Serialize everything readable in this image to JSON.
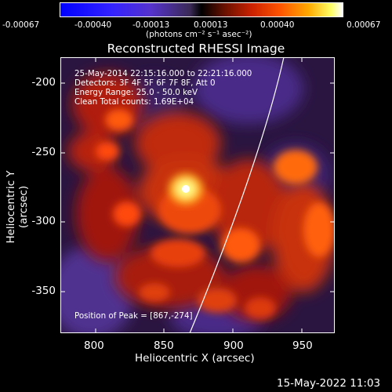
{
  "colorbar": {
    "ticks": [
      "-0.00067",
      "-0.00040",
      "-0.00013",
      "0.00013",
      "0.00040",
      "0.00067"
    ],
    "units": "(photons cm⁻² s⁻¹ asec⁻²)"
  },
  "title": "Reconstructed RHESSI Image",
  "info": {
    "time_range": "25-May-2014 22:15:16.000 to 22:21:16.000",
    "detectors": "Detectors: 3F 4F 5F 6F 7F 8F, Att 0",
    "energy": "Energy Range: 25.0 - 50.0 keV",
    "method": "Clean    Total counts: 1.69E+04",
    "peak": "Position of Peak = [867,-274]"
  },
  "axes": {
    "xlabel": "Heliocentric X (arcsec)",
    "ylabel": "Heliocentric Y (arcsec)",
    "xticks": [
      "800",
      "850",
      "900",
      "950"
    ],
    "yticks": [
      "-200",
      "-250",
      "-300",
      "-350"
    ]
  },
  "footer": {
    "date": "15-May-2022 11:03"
  },
  "colors": {
    "background": "#000000",
    "limb": "#ffffff"
  }
}
